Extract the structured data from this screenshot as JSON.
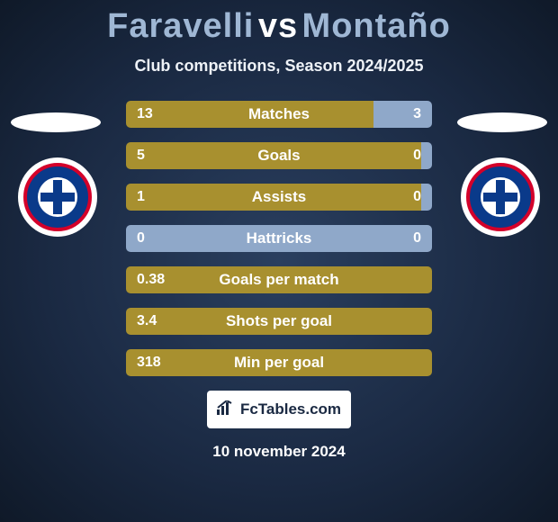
{
  "title": {
    "player1": "Faravelli",
    "vs": "vs",
    "player2": "Montaño"
  },
  "title_color_p1": "#9fb7d4",
  "title_color_vs": "#ffffff",
  "title_color_p2": "#9fb7d4",
  "subtitle": "Club competitions, Season 2024/2025",
  "colors": {
    "p1_bar": "#a8902f",
    "p2_bar": "#8fa8c9",
    "full_bar": "#a8902f",
    "bar_text": "#ffffff"
  },
  "stats": [
    {
      "label": "Matches",
      "left_val": "13",
      "right_val": "3",
      "left_pct": 81,
      "right_pct": 19,
      "two_sided": true
    },
    {
      "label": "Goals",
      "left_val": "5",
      "right_val": "0",
      "left_pct": 100,
      "right_pct": 0,
      "two_sided": true
    },
    {
      "label": "Assists",
      "left_val": "1",
      "right_val": "0",
      "left_pct": 100,
      "right_pct": 0,
      "two_sided": true
    },
    {
      "label": "Hattricks",
      "left_val": "0",
      "right_val": "0",
      "left_pct": 50,
      "right_pct": 50,
      "two_sided": true,
      "neutral": true
    },
    {
      "label": "Goals per match",
      "left_val": "0.38",
      "right_val": "",
      "left_pct": 100,
      "right_pct": 0,
      "two_sided": false
    },
    {
      "label": "Shots per goal",
      "left_val": "3.4",
      "right_val": "",
      "left_pct": 100,
      "right_pct": 0,
      "two_sided": false
    },
    {
      "label": "Min per goal",
      "left_val": "318",
      "right_val": "",
      "left_pct": 100,
      "right_pct": 0,
      "two_sided": false
    }
  ],
  "footer": {
    "brand": "FcTables.com",
    "date": "10 november 2024"
  },
  "club_badge": {
    "outer_bg": "#0a3a8a",
    "ring": "#d4002a",
    "inner_bg": "#ffffff",
    "cross": "#0a3a8a"
  }
}
